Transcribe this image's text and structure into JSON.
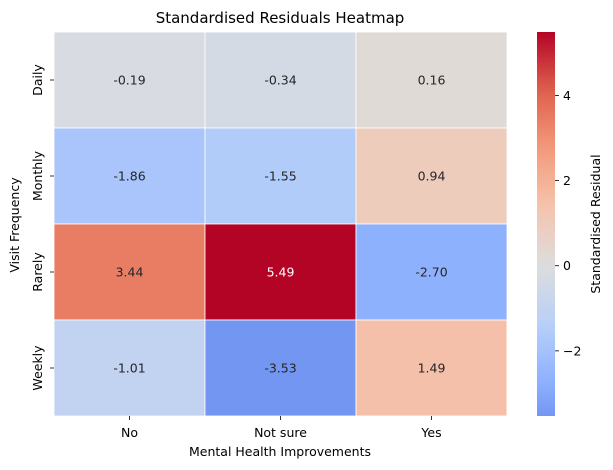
{
  "chart_data": {
    "type": "heatmap",
    "title": "Standardised Residuals Heatmap",
    "xlabel": "Mental Health Improvements",
    "ylabel": "Visit Frequency",
    "x_categories": [
      "No",
      "Not sure",
      "Yes"
    ],
    "y_categories": [
      "Daily",
      "Monthly",
      "Rarely",
      "Weekly"
    ],
    "values": [
      [
        -0.19,
        -0.34,
        0.16
      ],
      [
        -1.86,
        -1.55,
        0.94
      ],
      [
        3.44,
        5.49,
        -2.7
      ],
      [
        -1.01,
        -3.53,
        1.49
      ]
    ],
    "cell_labels": [
      [
        "-0.19",
        "-0.34",
        "0.16"
      ],
      [
        "-1.86",
        "-1.55",
        "0.94"
      ],
      [
        "3.44",
        "5.49",
        "-2.70"
      ],
      [
        "-1.01",
        "-3.53",
        "1.49"
      ]
    ],
    "colormap": "coolwarm",
    "center": 0,
    "vmin": -3.53,
    "vmax": 5.49,
    "colorbar": {
      "label": "Standardised Residual",
      "ticks": [
        -2,
        0,
        2,
        4
      ],
      "tick_labels": [
        "−2",
        "0",
        "2",
        "4"
      ]
    },
    "grid": false
  }
}
